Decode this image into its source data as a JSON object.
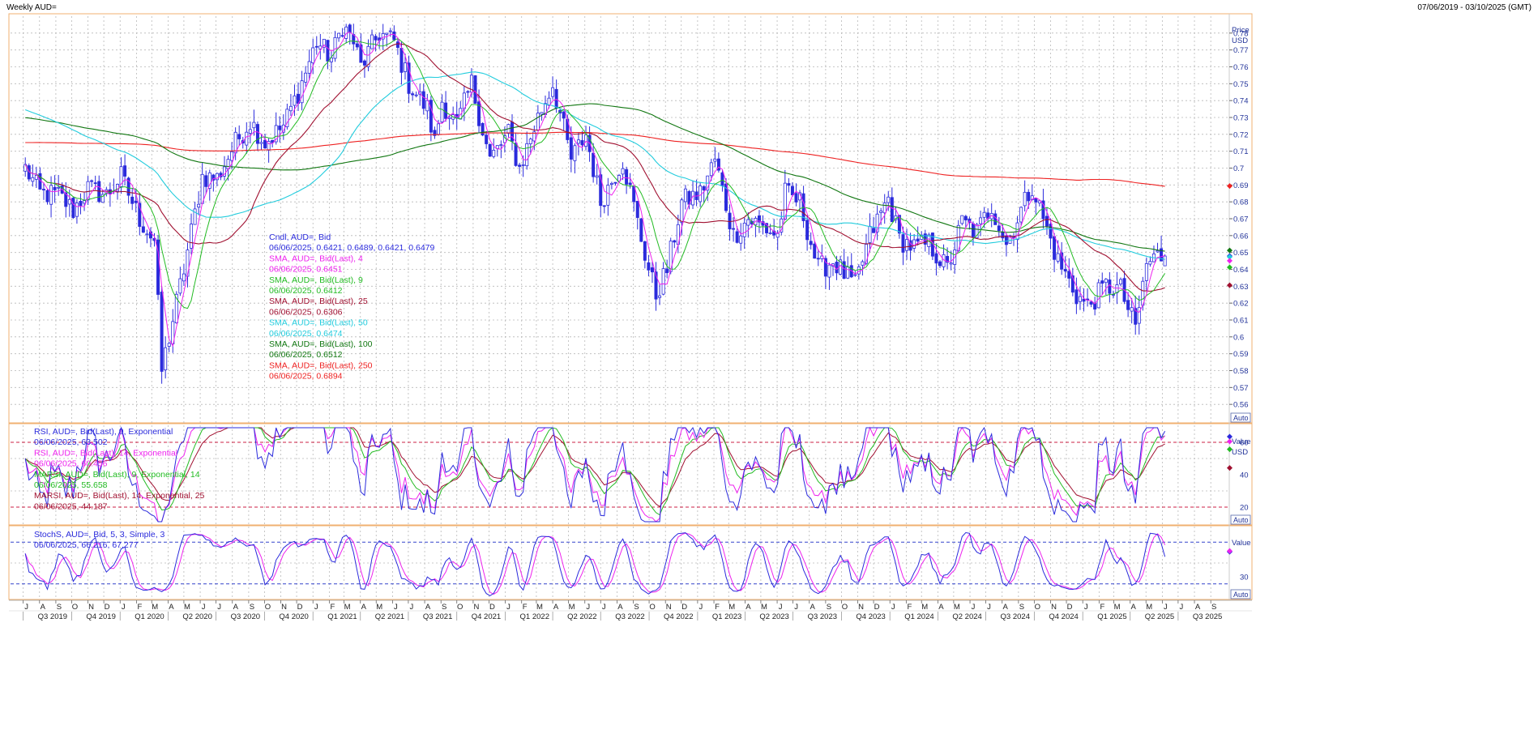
{
  "header": {
    "title": "Weekly AUD=",
    "date_range": "07/06/2019 - 03/10/2025 (GMT)"
  },
  "colors": {
    "candle": "#2b2bdc",
    "sma4": "#ee22ee",
    "sma9": "#22bb22",
    "sma25": "#a01030",
    "sma50": "#22ccdd",
    "sma100": "#117711",
    "sma250": "#ee2222",
    "grid": "#b8b8b8",
    "panel_border": "#f0b070",
    "axis_text": "#223399"
  },
  "x_axis": {
    "months": [
      "J",
      "A",
      "S",
      "O",
      "N",
      "D",
      "J",
      "F",
      "M",
      "A",
      "M",
      "J",
      "J",
      "A",
      "S",
      "O",
      "N",
      "D",
      "J",
      "F",
      "M",
      "A",
      "M",
      "J",
      "J",
      "A",
      "S",
      "O",
      "N",
      "D",
      "J",
      "F",
      "M",
      "A",
      "M",
      "J",
      "J",
      "A",
      "S",
      "O",
      "N",
      "D",
      "J",
      "F",
      "M",
      "A",
      "M",
      "J",
      "J",
      "A",
      "S",
      "O",
      "N",
      "D",
      "J",
      "F",
      "M",
      "A",
      "M",
      "J",
      "J",
      "A",
      "S",
      "O",
      "N",
      "D",
      "J",
      "F",
      "M",
      "A",
      "M",
      "J",
      "J",
      "A",
      "S"
    ],
    "quarters": [
      "Q3 2019",
      "Q4 2019",
      "Q1 2020",
      "Q2 2020",
      "Q3 2020",
      "Q4 2020",
      "Q1 2021",
      "Q2 2021",
      "Q3 2021",
      "Q4 2021",
      "Q1 2022",
      "Q2 2022",
      "Q3 2022",
      "Q4 2022",
      "Q1 2023",
      "Q2 2023",
      "Q3 2023",
      "Q4 2023",
      "Q1 2024",
      "Q2 2024",
      "Q3 2024",
      "Q4 2024",
      "Q1 2025",
      "Q2 2025",
      "Q3 2025"
    ]
  },
  "chart_data": [
    {
      "type": "candlestick",
      "panel": "price",
      "axis_title": [
        "Price",
        "USD"
      ],
      "ylim": [
        0.55,
        0.79
      ],
      "yticks": [
        0.56,
        0.57,
        0.58,
        0.59,
        0.6,
        0.61,
        0.62,
        0.63,
        0.64,
        0.65,
        0.66,
        0.67,
        0.68,
        0.69,
        0.7,
        0.71,
        0.72,
        0.73,
        0.74,
        0.75,
        0.76,
        0.77,
        0.78
      ],
      "ytick_labels": [
        "0.56",
        "0.57",
        "0.58",
        "0.59",
        "0.6",
        "0.61",
        "0.62",
        "0.63",
        "0.64",
        "0.65",
        "0.66",
        "0.67",
        "0.68",
        "0.69",
        "0.7",
        "0.71",
        "0.72",
        "0.73",
        "0.74",
        "0.75",
        "0.76",
        "0.77",
        "0.78"
      ],
      "auto_label": "Auto",
      "close_anchors": [
        {
          "date": "2019-07-05",
          "v": 0.7
        },
        {
          "date": "2019-08-02",
          "v": 0.685
        },
        {
          "date": "2019-09-06",
          "v": 0.684
        },
        {
          "date": "2019-10-04",
          "v": 0.675
        },
        {
          "date": "2019-11-01",
          "v": 0.688
        },
        {
          "date": "2019-12-06",
          "v": 0.684
        },
        {
          "date": "2020-01-03",
          "v": 0.695
        },
        {
          "date": "2020-02-07",
          "v": 0.67
        },
        {
          "date": "2020-03-06",
          "v": 0.657
        },
        {
          "date": "2020-03-20",
          "v": 0.58
        },
        {
          "date": "2020-04-03",
          "v": 0.6
        },
        {
          "date": "2020-05-01",
          "v": 0.64
        },
        {
          "date": "2020-06-05",
          "v": 0.695
        },
        {
          "date": "2020-07-03",
          "v": 0.694
        },
        {
          "date": "2020-08-07",
          "v": 0.715
        },
        {
          "date": "2020-09-04",
          "v": 0.728
        },
        {
          "date": "2020-10-02",
          "v": 0.715
        },
        {
          "date": "2020-11-06",
          "v": 0.725
        },
        {
          "date": "2020-12-04",
          "v": 0.745
        },
        {
          "date": "2021-01-08",
          "v": 0.775
        },
        {
          "date": "2021-02-05",
          "v": 0.765
        },
        {
          "date": "2021-02-26",
          "v": 0.785
        },
        {
          "date": "2021-03-19",
          "v": 0.775
        },
        {
          "date": "2021-04-02",
          "v": 0.76
        },
        {
          "date": "2021-05-07",
          "v": 0.78
        },
        {
          "date": "2021-06-04",
          "v": 0.775
        },
        {
          "date": "2021-07-02",
          "v": 0.75
        },
        {
          "date": "2021-08-06",
          "v": 0.735
        },
        {
          "date": "2021-08-20",
          "v": 0.715
        },
        {
          "date": "2021-09-03",
          "v": 0.74
        },
        {
          "date": "2021-10-01",
          "v": 0.725
        },
        {
          "date": "2021-10-29",
          "v": 0.75
        },
        {
          "date": "2021-12-03",
          "v": 0.705
        },
        {
          "date": "2022-01-07",
          "v": 0.72
        },
        {
          "date": "2022-01-28",
          "v": 0.7
        },
        {
          "date": "2022-03-04",
          "v": 0.73
        },
        {
          "date": "2022-04-01",
          "v": 0.75
        },
        {
          "date": "2022-05-06",
          "v": 0.705
        },
        {
          "date": "2022-06-03",
          "v": 0.72
        },
        {
          "date": "2022-07-01",
          "v": 0.68
        },
        {
          "date": "2022-08-12",
          "v": 0.705
        },
        {
          "date": "2022-09-30",
          "v": 0.64
        },
        {
          "date": "2022-10-14",
          "v": 0.625
        },
        {
          "date": "2022-11-04",
          "v": 0.64
        },
        {
          "date": "2022-12-02",
          "v": 0.68
        },
        {
          "date": "2023-01-06",
          "v": 0.685
        },
        {
          "date": "2023-02-03",
          "v": 0.705
        },
        {
          "date": "2023-03-10",
          "v": 0.66
        },
        {
          "date": "2023-04-07",
          "v": 0.67
        },
        {
          "date": "2023-05-05",
          "v": 0.665
        },
        {
          "date": "2023-06-02",
          "v": 0.66
        },
        {
          "date": "2023-06-16",
          "v": 0.685
        },
        {
          "date": "2023-07-14",
          "v": 0.68
        },
        {
          "date": "2023-08-18",
          "v": 0.64
        },
        {
          "date": "2023-09-15",
          "v": 0.645
        },
        {
          "date": "2023-10-27",
          "v": 0.63
        },
        {
          "date": "2023-11-24",
          "v": 0.66
        },
        {
          "date": "2023-12-29",
          "v": 0.682
        },
        {
          "date": "2024-01-19",
          "v": 0.658
        },
        {
          "date": "2024-02-16",
          "v": 0.653
        },
        {
          "date": "2024-03-15",
          "v": 0.655
        },
        {
          "date": "2024-04-19",
          "v": 0.64
        },
        {
          "date": "2024-05-17",
          "v": 0.668
        },
        {
          "date": "2024-06-14",
          "v": 0.662
        },
        {
          "date": "2024-07-12",
          "v": 0.678
        },
        {
          "date": "2024-08-09",
          "v": 0.655
        },
        {
          "date": "2024-09-27",
          "v": 0.69
        },
        {
          "date": "2024-10-18",
          "v": 0.67
        },
        {
          "date": "2024-11-15",
          "v": 0.645
        },
        {
          "date": "2024-12-20",
          "v": 0.625
        },
        {
          "date": "2025-01-10",
          "v": 0.618
        },
        {
          "date": "2025-02-14",
          "v": 0.63
        },
        {
          "date": "2025-03-14",
          "v": 0.628
        },
        {
          "date": "2025-04-11",
          "v": 0.605
        },
        {
          "date": "2025-05-02",
          "v": 0.643
        },
        {
          "date": "2025-05-23",
          "v": 0.648
        },
        {
          "date": "2025-06-06",
          "v": 0.6479
        }
      ],
      "legend": [
        {
          "text": "Cndl, AUD=, Bid",
          "color": "#2b2bdc"
        },
        {
          "text": "06/06/2025, 0.6421, 0.6489, 0.6421, 0.6479",
          "color": "#2b2bdc"
        },
        {
          "text": "SMA, AUD=, Bid(Last), 4",
          "color": "#ee22ee"
        },
        {
          "text": "06/06/2025, 0.6451",
          "color": "#ee22ee"
        },
        {
          "text": "SMA, AUD=, Bid(Last), 9",
          "color": "#22bb22"
        },
        {
          "text": "06/06/2025, 0.6412",
          "color": "#22bb22"
        },
        {
          "text": "SMA, AUD=, Bid(Last), 25",
          "color": "#a01030"
        },
        {
          "text": "06/06/2025, 0.6306",
          "color": "#a01030"
        },
        {
          "text": "SMA, AUD=, Bid(Last), 50",
          "color": "#22ccdd"
        },
        {
          "text": "06/06/2025, 0.6474",
          "color": "#22ccdd"
        },
        {
          "text": "SMA, AUD=, Bid(Last), 100",
          "color": "#117711"
        },
        {
          "text": "06/06/2025, 0.6512",
          "color": "#117711"
        },
        {
          "text": "SMA, AUD=, Bid(Last), 250",
          "color": "#ee2222"
        },
        {
          "text": "06/06/2025, 0.6894",
          "color": "#ee2222"
        }
      ]
    },
    {
      "type": "line",
      "panel": "rsi",
      "axis_title": [
        "Value",
        "USD"
      ],
      "ylim": [
        10,
        70
      ],
      "yticks": [
        20,
        40,
        60
      ],
      "ytick_labels": [
        "20",
        "40",
        "60"
      ],
      "reference_lines": [
        20,
        60
      ],
      "auto_label": "Auto",
      "legend": [
        {
          "text": "RSI, AUD=, Bid(Last), 9, Exponential",
          "color": "#2b2bdc"
        },
        {
          "text": "06/06/2025, 63.502",
          "color": "#2b2bdc"
        },
        {
          "text": "RSI, AUD=, Bid(Last), 14, Exponential",
          "color": "#ee22ee"
        },
        {
          "text": "06/06/2025, 60.456",
          "color": "#ee22ee"
        },
        {
          "text": "MARSI, AUD=, Bid(Last), 9, Exponential, 14",
          "color": "#22bb22"
        },
        {
          "text": "06/06/2025, 55.658",
          "color": "#22bb22"
        },
        {
          "text": "MARSI, AUD=, Bid(Last), 14, Exponential, 25",
          "color": "#a01030"
        },
        {
          "text": "06/06/2025, 44.187",
          "color": "#a01030"
        }
      ]
    },
    {
      "type": "line",
      "panel": "stoch",
      "axis_title": [
        "Value"
      ],
      "ylim": [
        0,
        100
      ],
      "yticks": [
        30
      ],
      "ytick_labels": [
        "30"
      ],
      "reference_lines": [
        20,
        80
      ],
      "auto_label": "Auto",
      "legend": [
        {
          "text": "StochS, AUD=, Bid, 5, 3, Simple, 3",
          "color": "#2b2bdc"
        },
        {
          "text": "06/06/2025, 66.216, 67.277",
          "color": "#2b2bdc"
        }
      ]
    }
  ]
}
